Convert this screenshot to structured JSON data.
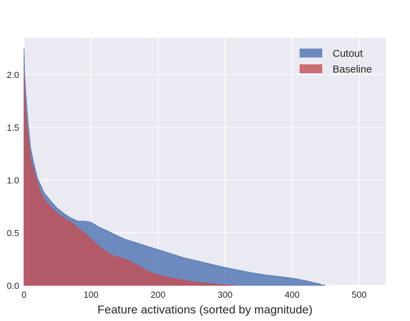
{
  "chart_data": {
    "type": "area",
    "title": "",
    "xlabel": "Feature activations (sorted by magnitude)",
    "ylabel": "",
    "xlim": [
      0,
      540
    ],
    "ylim": [
      0,
      2.35
    ],
    "x_ticks": [
      0,
      100,
      200,
      300,
      400,
      500
    ],
    "y_ticks": [
      0.0,
      0.5,
      1.0,
      1.5,
      2.0
    ],
    "x_tick_labels": [
      "0",
      "100",
      "200",
      "300",
      "400",
      "500"
    ],
    "y_tick_labels": [
      "0.0",
      "0.5",
      "1.0",
      "1.5",
      "2.0"
    ],
    "grid": true,
    "legend_position": "top-right",
    "background": "#eaeaf2",
    "series": [
      {
        "name": "Cutout",
        "color": "#4c72b0",
        "x": [
          0,
          1,
          3,
          6,
          10,
          15,
          20,
          25,
          30,
          40,
          50,
          60,
          70,
          80,
          90,
          100,
          110,
          120,
          130,
          140,
          150,
          160,
          170,
          180,
          200,
          220,
          240,
          260,
          280,
          300,
          320,
          340,
          360,
          380,
          400,
          420,
          430,
          440,
          445,
          450
        ],
        "values": [
          2.25,
          2.0,
          1.8,
          1.55,
          1.3,
          1.15,
          1.02,
          0.95,
          0.88,
          0.8,
          0.73,
          0.68,
          0.64,
          0.61,
          0.61,
          0.6,
          0.56,
          0.53,
          0.5,
          0.47,
          0.44,
          0.42,
          0.4,
          0.38,
          0.34,
          0.3,
          0.26,
          0.23,
          0.2,
          0.17,
          0.145,
          0.12,
          0.1,
          0.085,
          0.07,
          0.045,
          0.03,
          0.015,
          0.005,
          0.0
        ]
      },
      {
        "name": "Baseline",
        "color": "#c44e52",
        "x": [
          0,
          1,
          3,
          6,
          10,
          15,
          20,
          25,
          30,
          40,
          50,
          60,
          70,
          80,
          90,
          100,
          110,
          120,
          130,
          140,
          150,
          160,
          170,
          180,
          190,
          200,
          210,
          220,
          230,
          240,
          250,
          260,
          270,
          280,
          290,
          300,
          310,
          315
        ],
        "values": [
          2.0,
          1.8,
          1.6,
          1.4,
          1.2,
          1.08,
          0.97,
          0.88,
          0.82,
          0.74,
          0.68,
          0.64,
          0.6,
          0.55,
          0.5,
          0.44,
          0.38,
          0.33,
          0.29,
          0.27,
          0.25,
          0.22,
          0.19,
          0.15,
          0.12,
          0.1,
          0.085,
          0.07,
          0.058,
          0.048,
          0.038,
          0.03,
          0.022,
          0.016,
          0.01,
          0.006,
          0.002,
          0.0
        ]
      }
    ]
  }
}
